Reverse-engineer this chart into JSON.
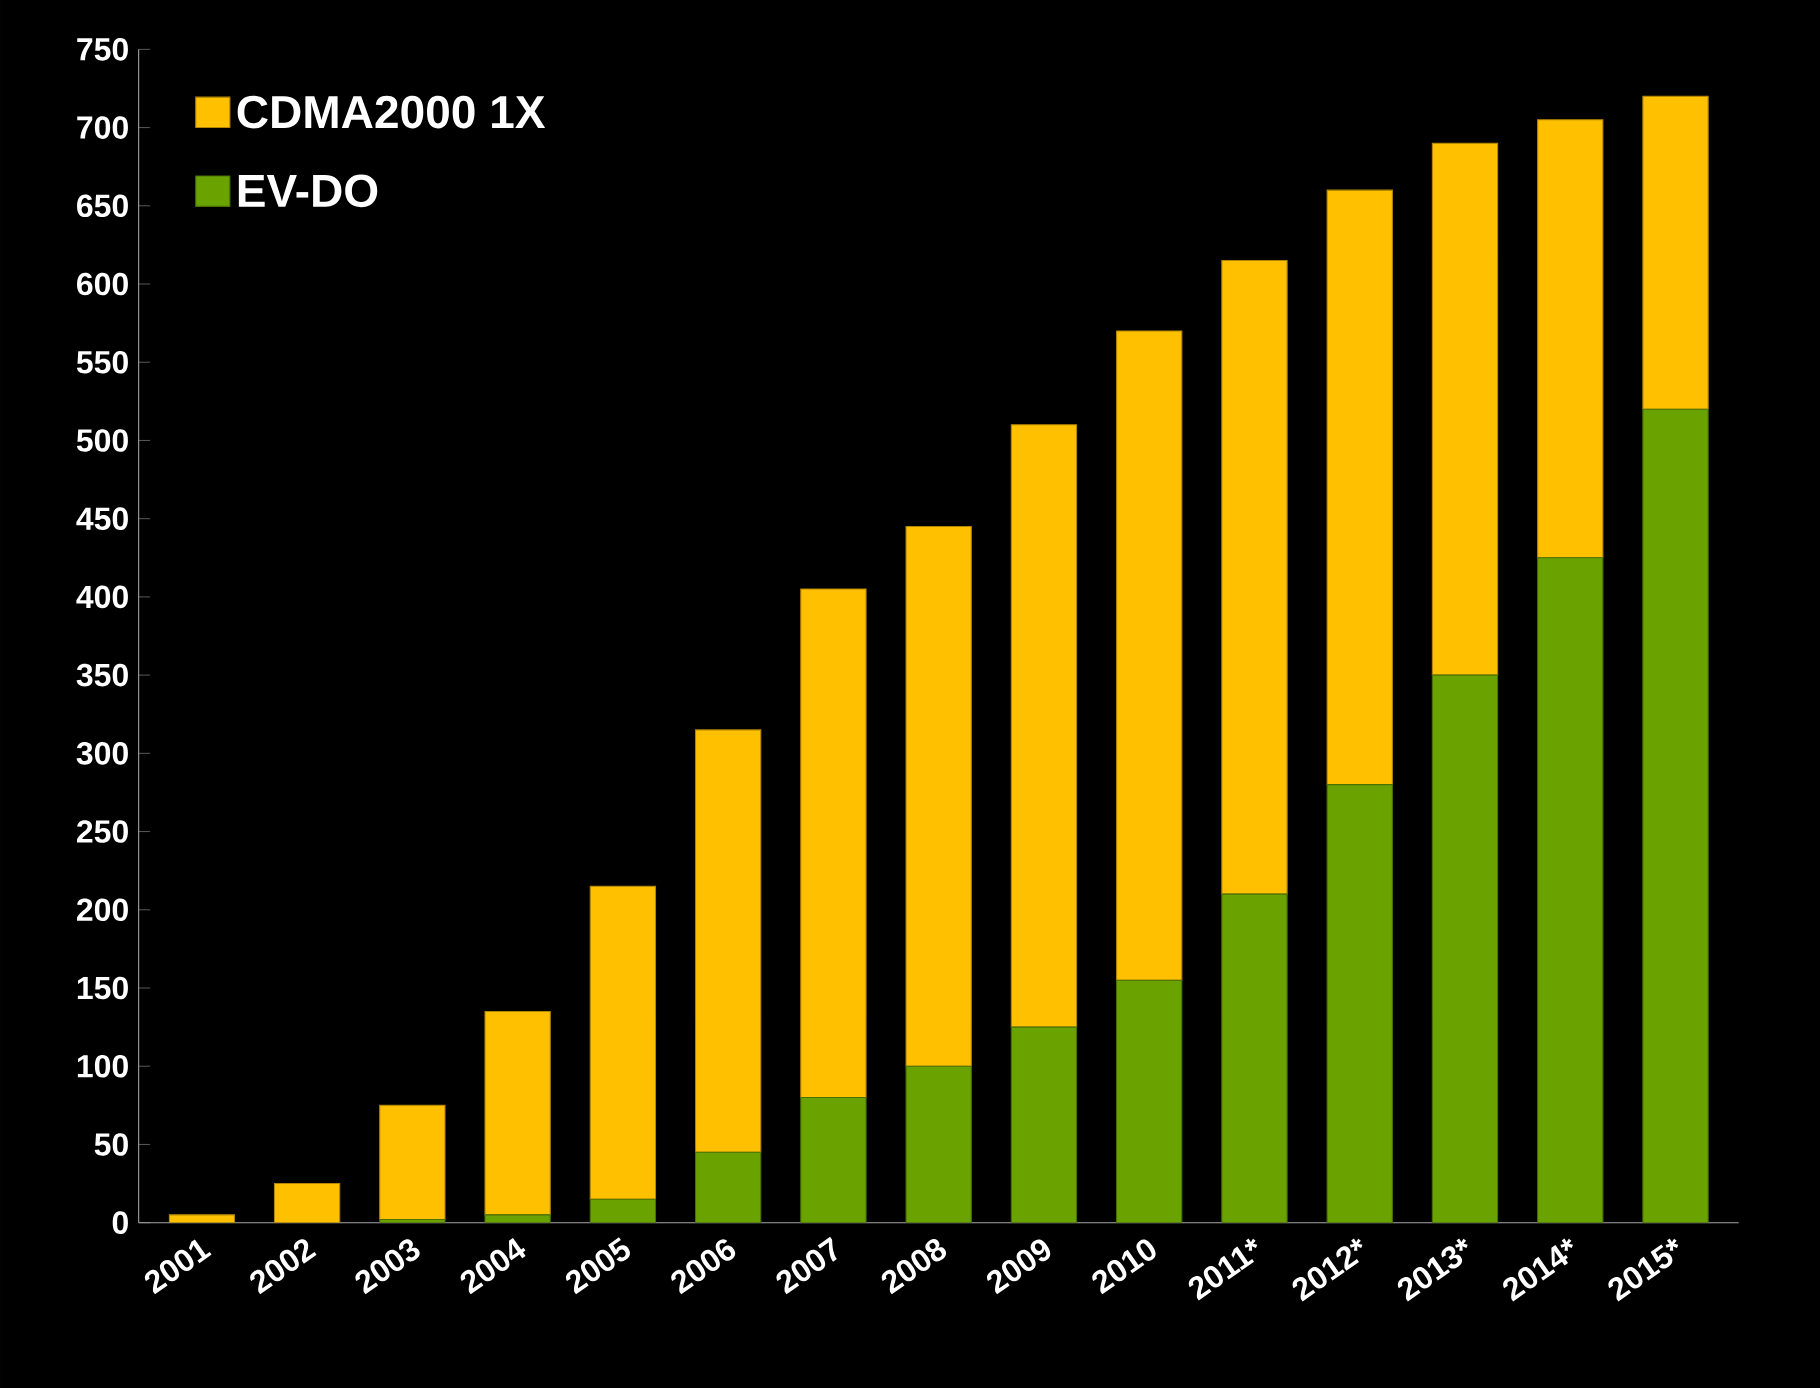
{
  "chart_data": {
    "type": "bar",
    "stacked": true,
    "legend": "top left",
    "categories": [
      "2001",
      "2002",
      "2003",
      "2004",
      "2005",
      "2006",
      "2007",
      "2008",
      "2009",
      "2010",
      "2011*",
      "2012*",
      "2013*",
      "2014*",
      "2015*"
    ],
    "series": [
      {
        "name": "EV-DO",
        "color": "#6aa200",
        "values": [
          0,
          0,
          2,
          5,
          15,
          45,
          80,
          100,
          125,
          155,
          210,
          280,
          350,
          425,
          520
        ]
      },
      {
        "name": "CDMA2000 1X",
        "color": "#ffc000",
        "values": [
          5,
          25,
          73,
          130,
          200,
          270,
          325,
          345,
          385,
          415,
          405,
          380,
          340,
          280,
          200
        ]
      }
    ],
    "ylim": [
      0,
      750
    ],
    "yticks": [
      0,
      50,
      100,
      150,
      200,
      250,
      300,
      350,
      400,
      450,
      500,
      550,
      600,
      650,
      700,
      750
    ]
  }
}
